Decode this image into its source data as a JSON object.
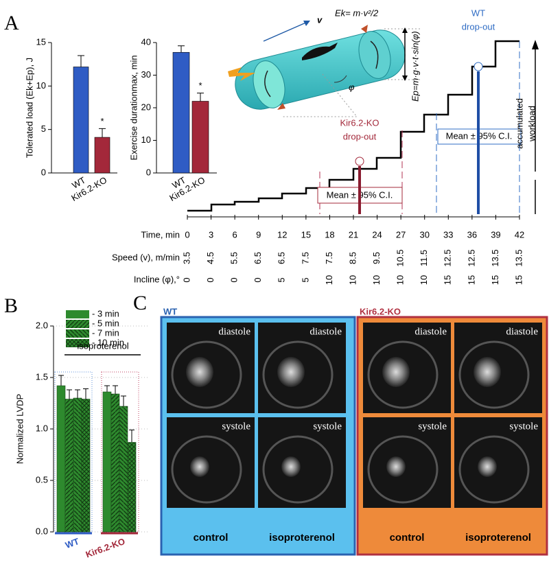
{
  "panel_labels": [
    "A",
    "B",
    "C"
  ],
  "chart_data": [
    {
      "type": "bar",
      "y_label": "Tolerated load (Ek+Ep), J",
      "categories": [
        "WT",
        "Kir6.2-KO"
      ],
      "values": [
        12.2,
        4.1
      ],
      "errors": [
        1.3,
        1.0
      ],
      "colors": [
        "#2f5cc4",
        "#a3283a"
      ],
      "value_annotations": [
        null,
        "*"
      ],
      "ylim": [
        0,
        15
      ],
      "yticks": [
        0,
        5,
        10,
        15
      ]
    },
    {
      "type": "bar",
      "y_label": "Exercise durationmax, min",
      "categories": [
        "WT",
        "Kir6.2-KO"
      ],
      "values": [
        37,
        22
      ],
      "errors": [
        2,
        2.5
      ],
      "colors": [
        "#2f5cc4",
        "#a3283a"
      ],
      "value_annotations": [
        null,
        "*"
      ],
      "ylim": [
        0,
        40
      ],
      "yticks": [
        0,
        10,
        20,
        30,
        40
      ]
    },
    {
      "type": "grouped-bar",
      "y_label": "Normalized LVDP",
      "categories": [
        "WT",
        "Kir6.2-KO"
      ],
      "category_colors": [
        "#2f5cc4",
        "#a3283a"
      ],
      "annotation": "isoproterenol",
      "series": [
        {
          "name": "- 3 min",
          "color": "#2e8a2e",
          "hatch": "none",
          "values": [
            1.42,
            1.36
          ],
          "errors": [
            0.1,
            0.06
          ]
        },
        {
          "name": "- 5 min",
          "color": "#2e8a2e",
          "hatch": "diagonal",
          "values": [
            1.29,
            1.34
          ],
          "errors": [
            0.09,
            0.08
          ]
        },
        {
          "name": "- 7 min",
          "color": "#2e8a2e",
          "hatch": "back-diagonal",
          "values": [
            1.3,
            1.22
          ],
          "errors": [
            0.08,
            0.1
          ]
        },
        {
          "name": "- 10 min",
          "color": "#2e8a2e",
          "hatch": "cross",
          "values": [
            1.29,
            0.87
          ],
          "errors": [
            0.1,
            0.12
          ]
        }
      ],
      "ylim": [
        0,
        2
      ],
      "yticks": [
        {
          "value": 0,
          "label": "0.0"
        },
        {
          "value": 0.5,
          "label": "0.5"
        },
        {
          "value": 1,
          "label": "1.0"
        },
        {
          "value": 1.5,
          "label": "1.5"
        },
        {
          "value": 2,
          "label": "2.0"
        }
      ],
      "grid": true
    }
  ],
  "protocol": {
    "row_labels": [
      "Time, min",
      "Speed (v), m/min",
      "Incline (φ),°"
    ],
    "time": [
      "0",
      "3",
      "6",
      "9",
      "12",
      "15",
      "18",
      "21",
      "24",
      "27",
      "30",
      "33",
      "36",
      "39",
      "42"
    ],
    "speed": [
      "3.5",
      "4.5",
      "5.5",
      "6.5",
      "6.5",
      "7.5",
      "7.5",
      "8.5",
      "9.5",
      "10.5",
      "11.5",
      "12.5",
      "12.5",
      "13.5",
      "13.5"
    ],
    "incline": [
      "0",
      "0",
      "0",
      "0",
      "5",
      "5",
      "10",
      "10",
      "10",
      "10",
      "10",
      "15",
      "15",
      "15",
      "15"
    ],
    "ko_dropout": [
      "Kir6.2-KO",
      "drop-out"
    ],
    "wt_dropout": [
      "WT",
      "drop-out"
    ],
    "ci_label_ko": "Mean ± 95% C.I.",
    "ci_label_wt": "Mean ± 95% C.I.",
    "workload": [
      "accumulated",
      "workload"
    ],
    "velocity": "v",
    "kinetic": "Ek= m·v²/2",
    "potential": "Ep=m·g·v·t·sin(φ)",
    "angle": "φ"
  },
  "imaging": {
    "groups": [
      {
        "title": "WT",
        "top": [
          "diastole",
          "diastole"
        ],
        "bottom": [
          "systole",
          "systole"
        ],
        "conditions": [
          "control",
          "isoproterenol"
        ]
      },
      {
        "title": "Kir6.2-KO",
        "top": [
          "diastole",
          "diastole"
        ],
        "bottom": [
          "systole",
          "systole"
        ],
        "conditions": [
          "control",
          "isoproterenol"
        ]
      }
    ]
  }
}
